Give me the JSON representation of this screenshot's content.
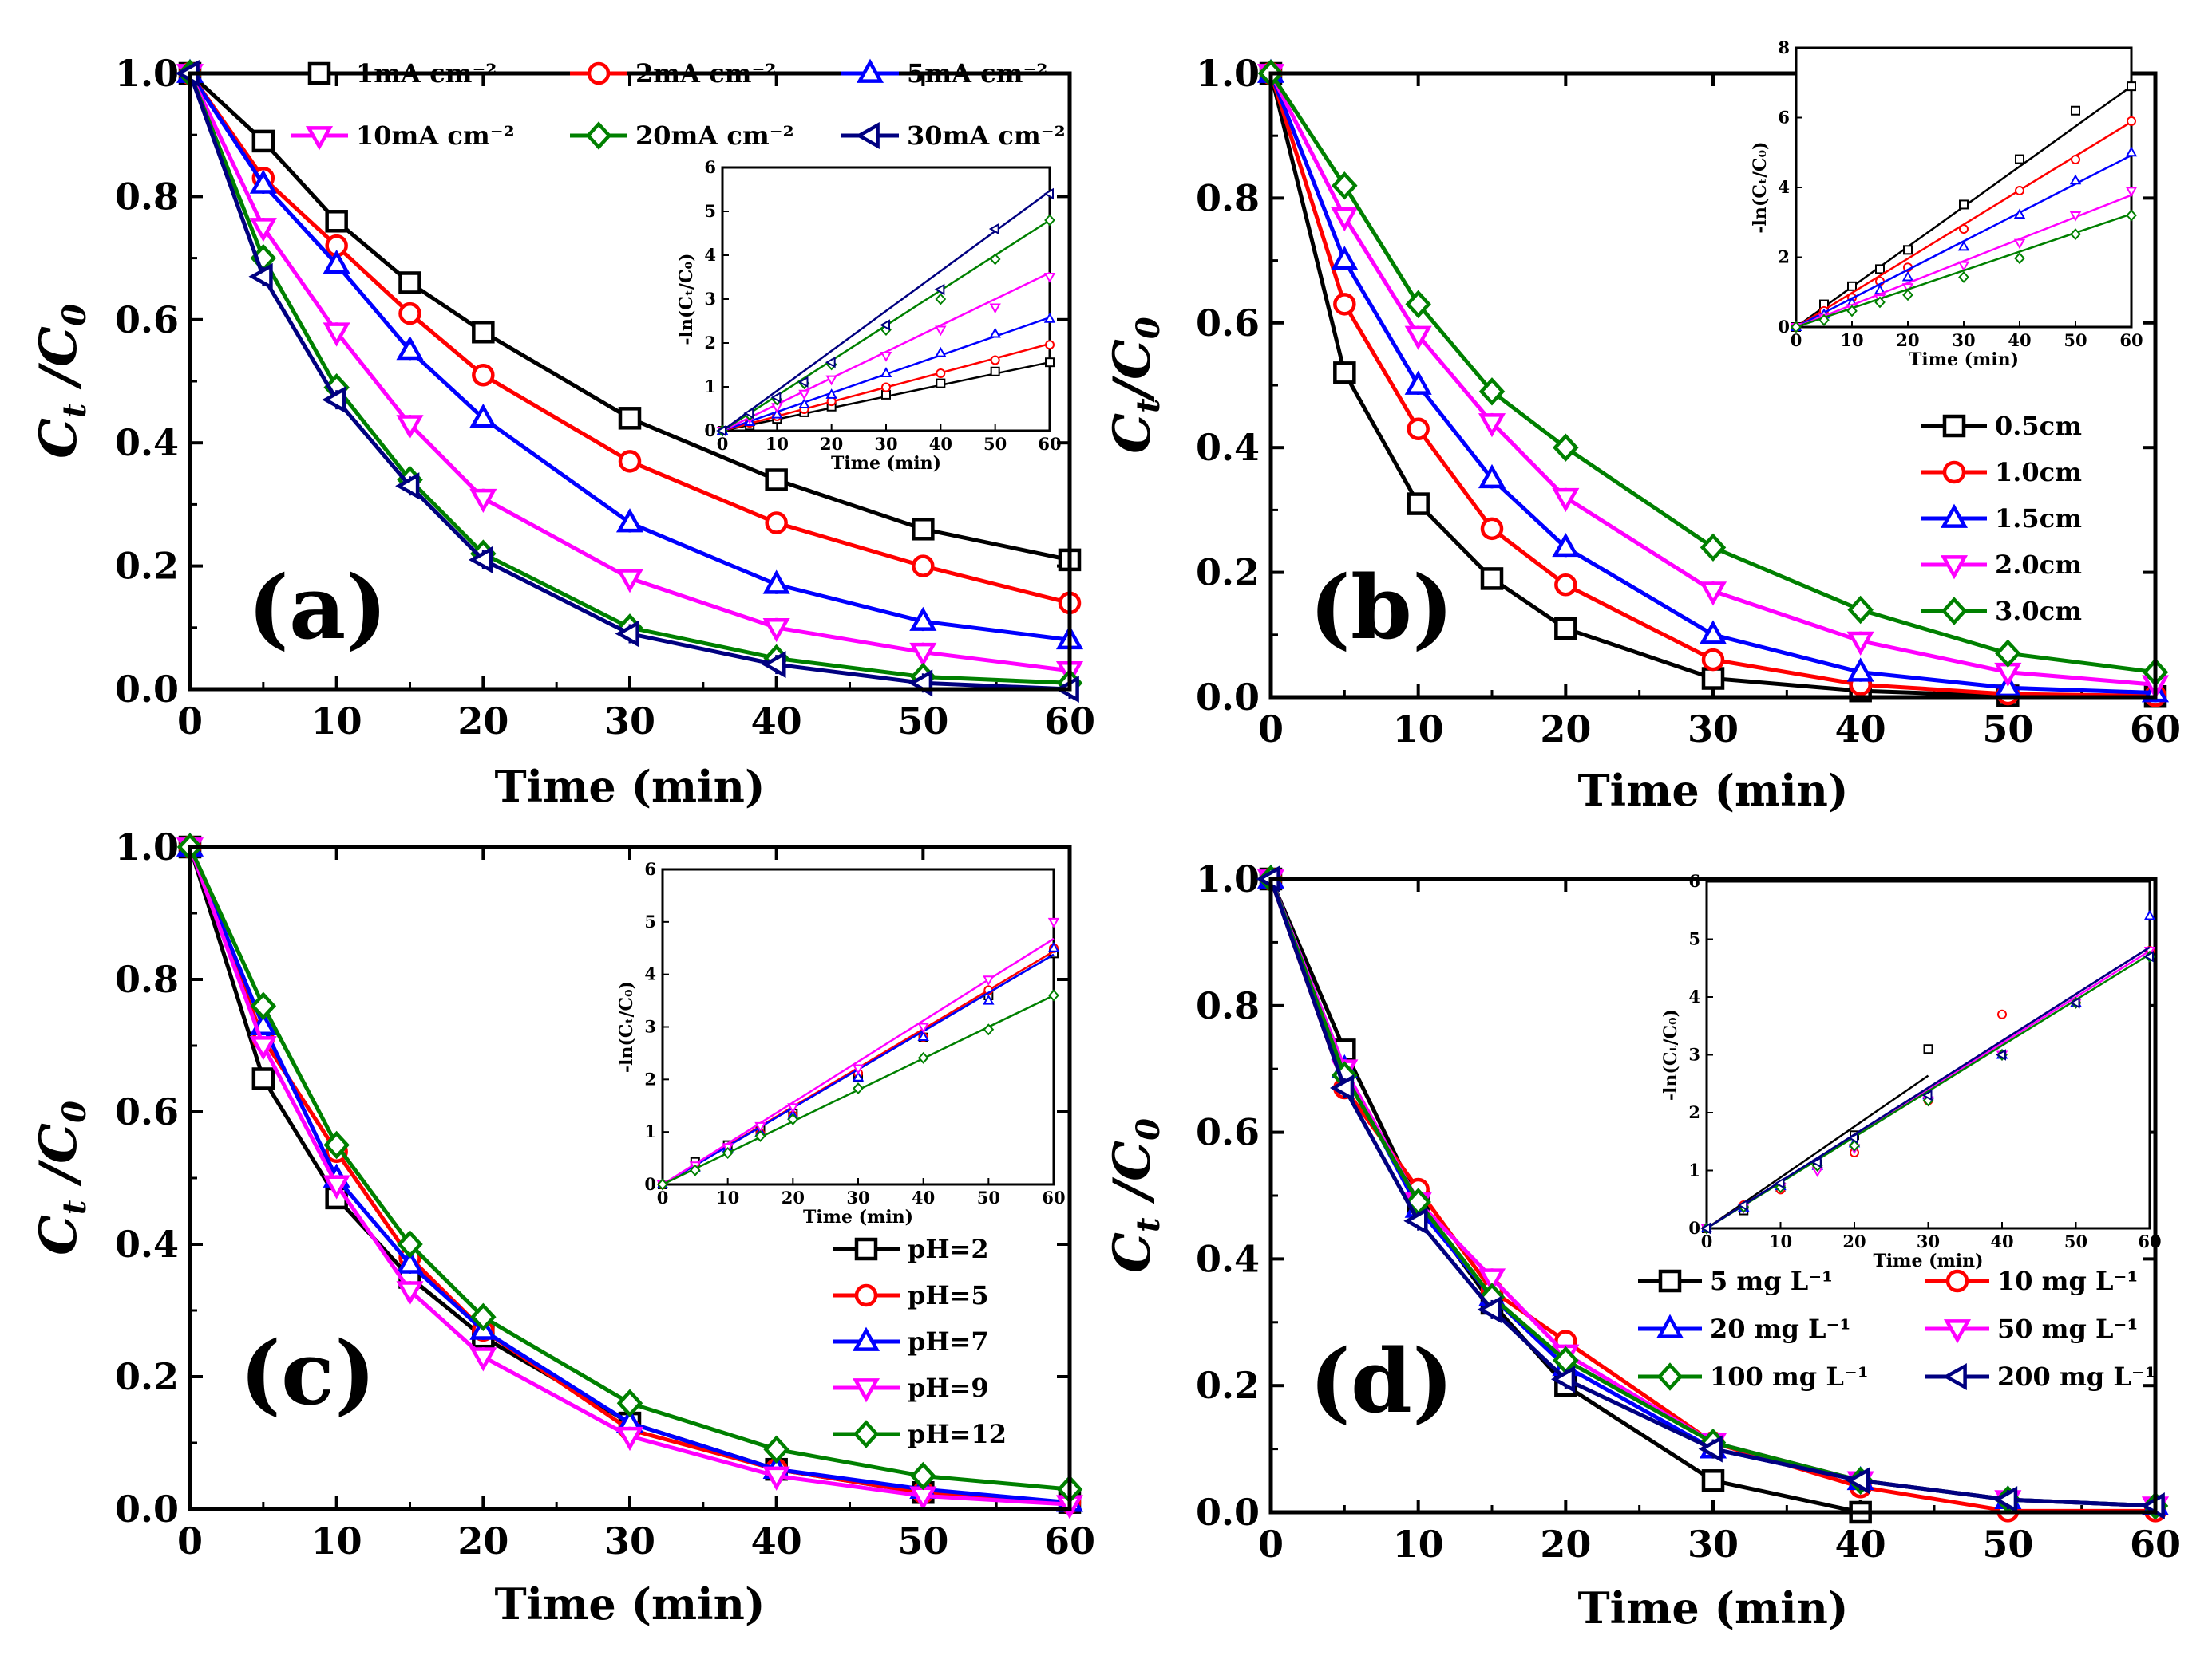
{
  "chart_data": [
    {
      "panel": "(a)",
      "type": "line",
      "xlabel": "Time (min)",
      "ylabel_main": "C",
      "ylabel_sub": "t",
      "ylabel_rest": " /C",
      "ylabel_sub2": "0",
      "xlim": [
        0,
        60
      ],
      "ylim": [
        0,
        1.0
      ],
      "xticks": [
        "0",
        "10",
        "20",
        "30",
        "40",
        "50",
        "60"
      ],
      "yticks": [
        "0.0",
        "0.2",
        "0.4",
        "0.6",
        "0.8",
        "1.0"
      ],
      "legend": "top",
      "x": [
        0,
        5,
        10,
        15,
        20,
        30,
        40,
        50,
        60
      ],
      "series": [
        {
          "name": "1mA cm⁻²",
          "color": "#000000",
          "marker": "square",
          "values": [
            1.0,
            0.89,
            0.76,
            0.66,
            0.58,
            0.44,
            0.34,
            0.26,
            0.21
          ]
        },
        {
          "name": "2mA cm⁻²",
          "color": "#ff0000",
          "marker": "circle",
          "values": [
            1.0,
            0.83,
            0.72,
            0.61,
            0.51,
            0.37,
            0.27,
            0.2,
            0.14
          ]
        },
        {
          "name": "5mA cm⁻²",
          "color": "#0000ff",
          "marker": "triangle-up",
          "values": [
            1.0,
            0.82,
            0.69,
            0.55,
            0.44,
            0.27,
            0.17,
            0.11,
            0.08
          ]
        },
        {
          "name": "10mA cm⁻²",
          "color": "#ff00ff",
          "marker": "triangle-down",
          "values": [
            1.0,
            0.75,
            0.58,
            0.43,
            0.31,
            0.18,
            0.1,
            0.06,
            0.03
          ]
        },
        {
          "name": "20mA cm⁻²",
          "color": "#008000",
          "marker": "diamond",
          "values": [
            1.0,
            0.7,
            0.49,
            0.34,
            0.22,
            0.1,
            0.05,
            0.02,
            0.01
          ]
        },
        {
          "name": "30mA cm⁻²",
          "color": "#000080",
          "marker": "triangle-left",
          "values": [
            1.0,
            0.67,
            0.47,
            0.33,
            0.21,
            0.09,
            0.04,
            0.01,
            0.0
          ]
        }
      ],
      "inset": {
        "ylabel": "-ln(Cₜ/C₀)",
        "xlabel": "Time (min)",
        "xlim": [
          0,
          60
        ],
        "ylim": [
          0,
          6
        ],
        "xticks": [
          "0",
          "10",
          "20",
          "30",
          "40",
          "50",
          "60"
        ],
        "yticks": [
          "0",
          "1",
          "2",
          "3",
          "4",
          "5",
          "6"
        ],
        "slopes": [
          0.026,
          0.033,
          0.043,
          0.06,
          0.08,
          0.091
        ],
        "series_values": [
          [
            0,
            0.12,
            0.27,
            0.42,
            0.55,
            0.82,
            1.08,
            1.35,
            1.56
          ],
          [
            0,
            0.18,
            0.33,
            0.49,
            0.67,
            0.99,
            1.31,
            1.61,
            1.96
          ],
          [
            0,
            0.2,
            0.37,
            0.6,
            0.82,
            1.31,
            1.77,
            2.21,
            2.55
          ],
          [
            0,
            0.29,
            0.54,
            0.84,
            1.17,
            1.71,
            2.3,
            2.81,
            3.51
          ],
          [
            0,
            0.36,
            0.71,
            1.08,
            1.51,
            2.3,
            3.0,
            3.91,
            4.8
          ],
          [
            0,
            0.4,
            0.76,
            1.11,
            1.56,
            2.41,
            3.22,
            4.6,
            5.4
          ]
        ]
      }
    },
    {
      "panel": "(b)",
      "type": "line",
      "xlabel": "Time (min)",
      "ylabel_main": "C",
      "ylabel_sub": "t",
      "ylabel_rest": "/C",
      "ylabel_sub2": "0",
      "xlim": [
        0,
        60
      ],
      "ylim": [
        0,
        1.0
      ],
      "xticks": [
        "0",
        "10",
        "20",
        "30",
        "40",
        "50",
        "60"
      ],
      "yticks": [
        "0.0",
        "0.2",
        "0.4",
        "0.6",
        "0.8",
        "1.0"
      ],
      "legend": "right",
      "x": [
        0,
        5,
        10,
        15,
        20,
        30,
        40,
        50,
        60
      ],
      "series": [
        {
          "name": "0.5cm",
          "color": "#000000",
          "marker": "square",
          "values": [
            1.0,
            0.52,
            0.31,
            0.19,
            0.11,
            0.03,
            0.01,
            0.002,
            0.001
          ]
        },
        {
          "name": "1.0cm",
          "color": "#ff0000",
          "marker": "circle",
          "values": [
            1.0,
            0.63,
            0.43,
            0.27,
            0.18,
            0.06,
            0.02,
            0.005,
            0.002
          ]
        },
        {
          "name": "1.5cm",
          "color": "#0000ff",
          "marker": "triangle-up",
          "values": [
            1.0,
            0.7,
            0.5,
            0.35,
            0.24,
            0.1,
            0.04,
            0.015,
            0.007
          ]
        },
        {
          "name": "2.0cm",
          "color": "#ff00ff",
          "marker": "triangle-down",
          "values": [
            1.0,
            0.77,
            0.58,
            0.44,
            0.32,
            0.17,
            0.09,
            0.04,
            0.02
          ]
        },
        {
          "name": "3.0cm",
          "color": "#008000",
          "marker": "diamond",
          "values": [
            1.0,
            0.82,
            0.63,
            0.49,
            0.4,
            0.24,
            0.14,
            0.07,
            0.04
          ]
        }
      ],
      "inset": {
        "ylabel": "-ln(Cₜ/C₀)",
        "xlabel": "Time (min)",
        "xlim": [
          0,
          60
        ],
        "ylim": [
          0,
          8
        ],
        "xticks": [
          "0",
          "10",
          "20",
          "30",
          "40",
          "50",
          "60"
        ],
        "yticks": [
          "0",
          "2",
          "4",
          "6",
          "8"
        ],
        "slopes": [
          0.115,
          0.098,
          0.082,
          0.063,
          0.054
        ],
        "series_values": [
          [
            0,
            0.65,
            1.17,
            1.66,
            2.21,
            3.51,
            4.81,
            6.2,
            6.9
          ],
          [
            0,
            0.46,
            0.84,
            1.31,
            1.71,
            2.81,
            3.91,
            4.8,
            5.9
          ],
          [
            0,
            0.36,
            0.69,
            1.05,
            1.43,
            2.3,
            3.22,
            4.2,
            5.0
          ],
          [
            0,
            0.26,
            0.54,
            0.82,
            1.14,
            1.77,
            2.41,
            3.2,
            3.9
          ],
          [
            0,
            0.2,
            0.46,
            0.71,
            0.92,
            1.43,
            1.97,
            2.66,
            3.2
          ]
        ]
      }
    },
    {
      "panel": "(c)",
      "type": "line",
      "xlabel": "Time (min)",
      "ylabel_main": "C",
      "ylabel_sub": "t",
      "ylabel_rest": " /C",
      "ylabel_sub2": "0",
      "xlim": [
        0,
        60
      ],
      "ylim": [
        0,
        1.0
      ],
      "xticks": [
        "0",
        "10",
        "20",
        "30",
        "40",
        "50",
        "60"
      ],
      "yticks": [
        "0.0",
        "0.2",
        "0.4",
        "0.6",
        "0.8",
        "1.0"
      ],
      "legend": "right",
      "x": [
        0,
        5,
        10,
        15,
        20,
        30,
        40,
        50,
        60
      ],
      "series": [
        {
          "name": "pH=2",
          "color": "#000000",
          "marker": "square",
          "values": [
            1.0,
            0.65,
            0.47,
            0.35,
            0.26,
            0.13,
            0.06,
            0.025,
            0.01
          ]
        },
        {
          "name": "pH=5",
          "color": "#ff0000",
          "marker": "circle",
          "values": [
            1.0,
            0.71,
            0.54,
            0.38,
            0.27,
            0.12,
            0.06,
            0.025,
            0.01
          ]
        },
        {
          "name": "pH=7",
          "color": "#0000ff",
          "marker": "triangle-up",
          "values": [
            1.0,
            0.73,
            0.5,
            0.37,
            0.27,
            0.13,
            0.06,
            0.03,
            0.01
          ]
        },
        {
          "name": "pH=9",
          "color": "#ff00ff",
          "marker": "triangle-down",
          "values": [
            1.0,
            0.7,
            0.49,
            0.33,
            0.23,
            0.11,
            0.05,
            0.02,
            0.007
          ]
        },
        {
          "name": "pH=12",
          "color": "#008000",
          "marker": "diamond",
          "values": [
            1.0,
            0.76,
            0.55,
            0.4,
            0.29,
            0.16,
            0.09,
            0.05,
            0.03
          ]
        }
      ],
      "inset": {
        "ylabel": "-ln(Cₜ/C₀)",
        "xlabel": "Time (min)",
        "xlim": [
          0,
          60
        ],
        "ylim": [
          0,
          6
        ],
        "xticks": [
          "0",
          "10",
          "20",
          "30",
          "40",
          "50",
          "60"
        ],
        "yticks": [
          "0",
          "1",
          "2",
          "3",
          "4",
          "5",
          "6"
        ],
        "slopes": [
          0.073,
          0.074,
          0.073,
          0.078,
          0.06
        ],
        "series_values": [
          [
            0,
            0.43,
            0.75,
            1.05,
            1.35,
            2.05,
            2.8,
            3.6,
            4.4
          ],
          [
            0,
            0.34,
            0.62,
            0.97,
            1.31,
            2.12,
            2.81,
            3.7,
            4.5
          ],
          [
            0,
            0.31,
            0.69,
            0.99,
            1.31,
            2.04,
            2.81,
            3.5,
            4.5
          ],
          [
            0,
            0.36,
            0.71,
            1.11,
            1.47,
            2.21,
            3.0,
            3.9,
            5.0
          ],
          [
            0,
            0.27,
            0.6,
            0.92,
            1.24,
            1.83,
            2.41,
            2.95,
            3.6
          ]
        ]
      }
    },
    {
      "panel": "(d)",
      "type": "line",
      "xlabel": "Time (min)",
      "ylabel_main": "C",
      "ylabel_sub": "t",
      "ylabel_rest": " /C",
      "ylabel_sub2": "0",
      "xlim": [
        0,
        60
      ],
      "ylim": [
        0,
        1.0
      ],
      "xticks": [
        "0",
        "10",
        "20",
        "30",
        "40",
        "50",
        "60"
      ],
      "yticks": [
        "0.0",
        "0.2",
        "0.4",
        "0.6",
        "0.8",
        "1.0"
      ],
      "legend": "bottom-right",
      "x": [
        0,
        5,
        10,
        15,
        20,
        30,
        40,
        50,
        60
      ],
      "series": [
        {
          "name": "5 mg L⁻¹",
          "color": "#000000",
          "marker": "square",
          "values": [
            1.0,
            0.73,
            0.49,
            0.33,
            0.2,
            0.05,
            0.0,
            null,
            null
          ]
        },
        {
          "name": "10 mg L⁻¹",
          "color": "#ff0000",
          "marker": "circle",
          "values": [
            1.0,
            0.67,
            0.51,
            0.35,
            0.27,
            0.11,
            0.04,
            0.002,
            0.002
          ]
        },
        {
          "name": "20 mg L⁻¹",
          "color": "#0000ff",
          "marker": "triangle-up",
          "values": [
            1.0,
            0.7,
            0.48,
            0.34,
            0.23,
            0.1,
            0.05,
            0.02,
            0.01
          ]
        },
        {
          "name": "50 mg L⁻¹",
          "color": "#ff00ff",
          "marker": "triangle-down",
          "values": [
            1.0,
            0.7,
            0.49,
            0.37,
            0.25,
            0.11,
            0.05,
            0.02,
            0.01
          ]
        },
        {
          "name": "100 mg L⁻¹",
          "color": "#008000",
          "marker": "diamond",
          "values": [
            1.0,
            0.69,
            0.49,
            0.34,
            0.24,
            0.11,
            0.05,
            0.02,
            0.01
          ]
        },
        {
          "name": "200 mg L⁻¹",
          "color": "#000080",
          "marker": "triangle-left",
          "values": [
            1.0,
            0.67,
            0.46,
            0.32,
            0.21,
            0.1,
            0.05,
            0.02,
            0.01
          ]
        }
      ],
      "inset": {
        "ylabel": "-ln(Cₜ/C₀)",
        "xlabel": "Time (min)",
        "xlim": [
          0,
          60
        ],
        "ylim": [
          0,
          6
        ],
        "xticks": [
          "0",
          "10",
          "20",
          "30",
          "40",
          "50",
          "60"
        ],
        "yticks": [
          "0",
          "1",
          "2",
          "3",
          "4",
          "5",
          "6"
        ],
        "slopes": [
          0.088,
          0.081,
          0.081,
          0.08,
          0.079,
          0.081
        ],
        "series_values": [
          [
            0,
            0.31,
            0.71,
            1.11,
            1.61,
            3.1,
            null,
            null,
            null
          ],
          [
            0,
            0.4,
            0.67,
            1.05,
            1.31,
            2.21,
            3.7,
            3.9,
            4.8
          ],
          [
            0,
            0.36,
            0.73,
            1.08,
            1.47,
            2.3,
            3.0,
            3.9,
            5.4
          ],
          [
            0,
            0.36,
            0.71,
            0.99,
            1.39,
            2.21,
            3.0,
            3.9,
            4.8
          ],
          [
            0,
            0.37,
            0.71,
            1.08,
            1.43,
            2.21,
            3.0,
            3.9,
            4.7
          ],
          [
            0,
            0.4,
            0.78,
            1.14,
            1.56,
            2.3,
            3.0,
            3.9,
            4.7
          ]
        ]
      }
    }
  ]
}
